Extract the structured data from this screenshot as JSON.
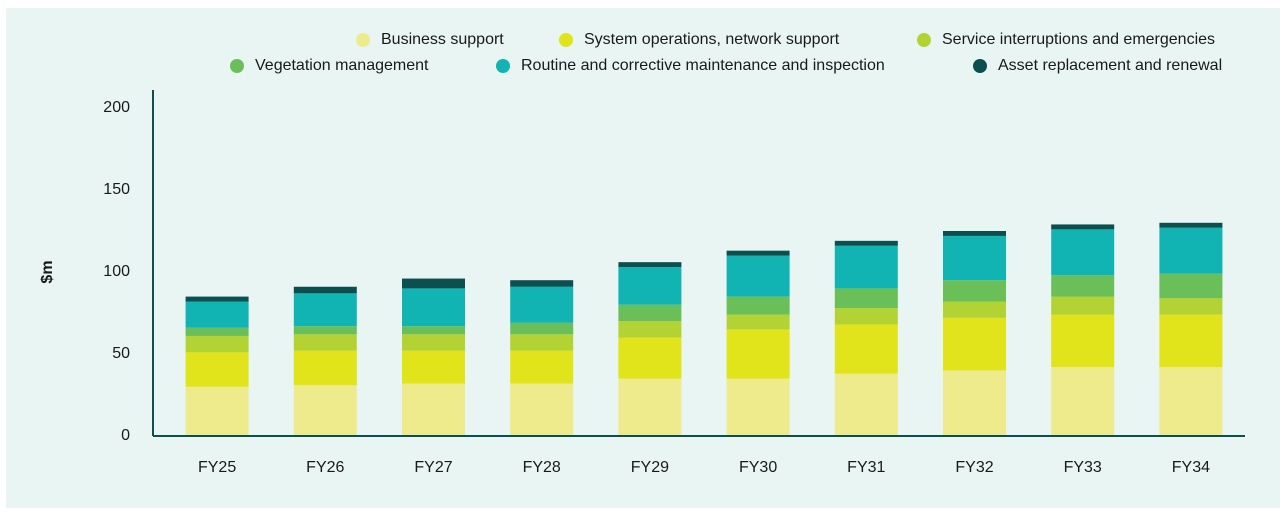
{
  "chart_data": {
    "type": "stacked_bar",
    "ylabel": "$m",
    "categories": [
      "FY25",
      "FY26",
      "FY27",
      "FY28",
      "FY29",
      "FY30",
      "FY31",
      "FY32",
      "FY33",
      "FY34"
    ],
    "series": [
      {
        "name": "Business support",
        "color": "#eeeb8c",
        "values": [
          30,
          31,
          32,
          32,
          35,
          35,
          38,
          40,
          42,
          42
        ]
      },
      {
        "name": "System operations, network support",
        "color": "#e1e31b",
        "values": [
          21,
          21,
          20,
          20,
          25,
          30,
          30,
          32,
          32,
          32
        ]
      },
      {
        "name": "Service interruptions and emergencies",
        "color": "#b3d334",
        "values": [
          10,
          10,
          10,
          10,
          10,
          9,
          10,
          10,
          11,
          10
        ]
      },
      {
        "name": "Vegetation management",
        "color": "#6bbf59",
        "values": [
          5,
          5,
          5,
          7,
          10,
          11,
          12,
          13,
          13,
          15
        ]
      },
      {
        "name": "Routine and corrective maintenance and inspection",
        "color": "#12b3b3",
        "values": [
          16,
          20,
          23,
          22,
          23,
          25,
          26,
          27,
          28,
          28
        ]
      },
      {
        "name": "Asset replacement and renewal",
        "color": "#0b4f4f",
        "values": [
          3,
          4,
          6,
          4,
          3,
          3,
          3,
          3,
          3,
          3
        ]
      }
    ],
    "ylim": [
      0,
      200
    ],
    "yticks": [
      0,
      50,
      100,
      150,
      200
    ],
    "grid": false
  }
}
